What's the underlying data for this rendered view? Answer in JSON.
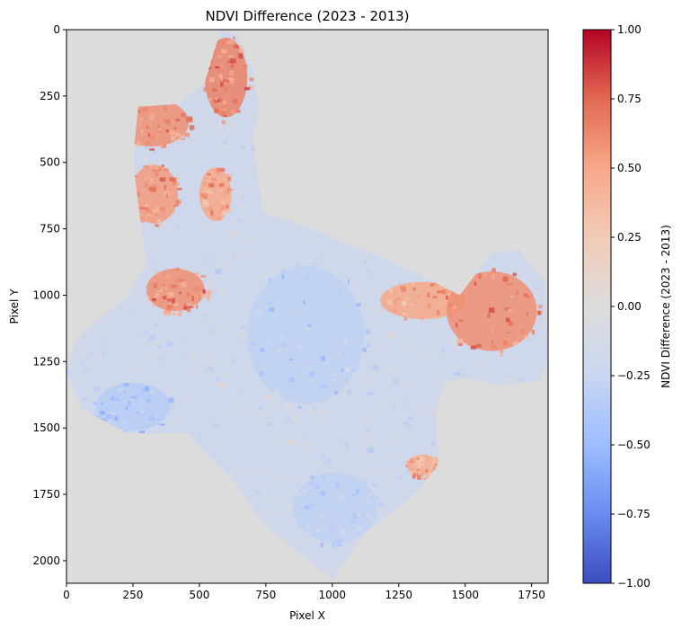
{
  "chart_data": {
    "type": "heatmap",
    "title": "NDVI Difference (2023 - 2013)",
    "xlabel": "Pixel X",
    "ylabel": "Pixel Y",
    "xlim": [
      0,
      1812
    ],
    "ylim": [
      2085,
      0
    ],
    "x_ticks": [
      0,
      250,
      500,
      750,
      1000,
      1250,
      1500,
      1750
    ],
    "y_ticks": [
      0,
      250,
      500,
      750,
      1000,
      1250,
      1500,
      1750,
      2000
    ],
    "colormap": "coolwarm",
    "background_value": 0.0,
    "colorbar": {
      "label": "NDVI Difference (2023 - 2013)",
      "range": [
        -1.0,
        1.0
      ],
      "ticks": [
        "1.00",
        "0.75",
        "0.50",
        "0.25",
        "0.00",
        "−0.25",
        "−0.50",
        "−0.75",
        "−1.00"
      ],
      "colors": [
        "#3b4cc0",
        "#6a8bef",
        "#9dbdff",
        "#c9d7f0",
        "#dddcdc",
        "#f2cbb7",
        "#f7a889",
        "#e26952",
        "#b40426"
      ]
    },
    "region_outline": [
      [
        580,
        0
      ],
      [
        640,
        20
      ],
      [
        700,
        150
      ],
      [
        725,
        290
      ],
      [
        700,
        400
      ],
      [
        720,
        560
      ],
      [
        740,
        690
      ],
      [
        840,
        720
      ],
      [
        950,
        760
      ],
      [
        1060,
        810
      ],
      [
        1170,
        850
      ],
      [
        1320,
        920
      ],
      [
        1480,
        1000
      ],
      [
        1600,
        840
      ],
      [
        1700,
        830
      ],
      [
        1800,
        950
      ],
      [
        1812,
        1250
      ],
      [
        1780,
        1320
      ],
      [
        1650,
        1340
      ],
      [
        1490,
        1310
      ],
      [
        1420,
        1330
      ],
      [
        1390,
        1450
      ],
      [
        1400,
        1640
      ],
      [
        1300,
        1760
      ],
      [
        1120,
        1900
      ],
      [
        1000,
        2070
      ],
      [
        900,
        1990
      ],
      [
        750,
        1870
      ],
      [
        620,
        1690
      ],
      [
        450,
        1520
      ],
      [
        230,
        1520
      ],
      [
        60,
        1430
      ],
      [
        0,
        1290
      ],
      [
        40,
        1160
      ],
      [
        230,
        1000
      ],
      [
        300,
        880
      ],
      [
        270,
        660
      ],
      [
        250,
        490
      ],
      [
        270,
        290
      ],
      [
        420,
        280
      ],
      [
        520,
        200
      ]
    ],
    "high_change_patches": [
      {
        "x": 320,
        "y": 350,
        "rx": 140,
        "ry": 90,
        "value": 0.6
      },
      {
        "x": 330,
        "y": 620,
        "rx": 90,
        "ry": 110,
        "value": 0.55
      },
      {
        "x": 600,
        "y": 180,
        "rx": 80,
        "ry": 150,
        "value": 0.65
      },
      {
        "x": 560,
        "y": 620,
        "rx": 60,
        "ry": 100,
        "value": 0.5
      },
      {
        "x": 410,
        "y": 980,
        "rx": 110,
        "ry": 80,
        "value": 0.6
      },
      {
        "x": 1340,
        "y": 1020,
        "rx": 160,
        "ry": 70,
        "value": 0.5
      },
      {
        "x": 1600,
        "y": 1060,
        "rx": 170,
        "ry": 150,
        "value": 0.6
      },
      {
        "x": 1340,
        "y": 1640,
        "rx": 60,
        "ry": 40,
        "value": 0.45
      }
    ],
    "low_change_patches": [
      {
        "x": 900,
        "y": 1150,
        "rx": 220,
        "ry": 260,
        "value": -0.3
      },
      {
        "x": 250,
        "y": 1420,
        "rx": 140,
        "ry": 90,
        "value": -0.35
      },
      {
        "x": 1010,
        "y": 1800,
        "rx": 160,
        "ry": 130,
        "value": -0.3
      }
    ]
  }
}
